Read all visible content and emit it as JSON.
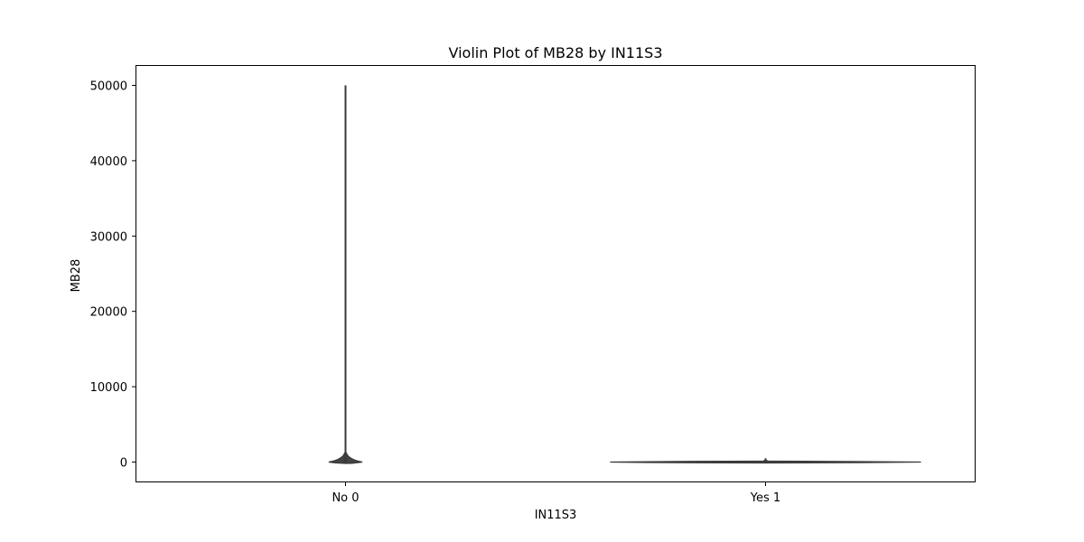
{
  "chart_data": {
    "type": "violin",
    "title": "Violin Plot of MB28 by IN11S3",
    "xlabel": "IN11S3",
    "ylabel": "MB28",
    "categories": [
      "No 0",
      "Yes 1"
    ],
    "ylim": [
      -2700,
      52700
    ],
    "yticks": [
      0,
      10000,
      20000,
      30000,
      40000,
      50000
    ],
    "ytick_labels": [
      "0",
      "10000",
      "20000",
      "30000",
      "40000",
      "50000"
    ],
    "series": [
      {
        "category": "No 0",
        "min": 0,
        "max": 50000,
        "q1": 0,
        "median": 0,
        "q3": 100,
        "density_half_width": 0.04
      },
      {
        "category": "Yes 1",
        "min": 0,
        "max": 500,
        "q1": 0,
        "median": 0,
        "q3": 50,
        "density_half_width": 0.37
      }
    ],
    "violin_color": "#444444",
    "grid": false,
    "legend": "none"
  }
}
